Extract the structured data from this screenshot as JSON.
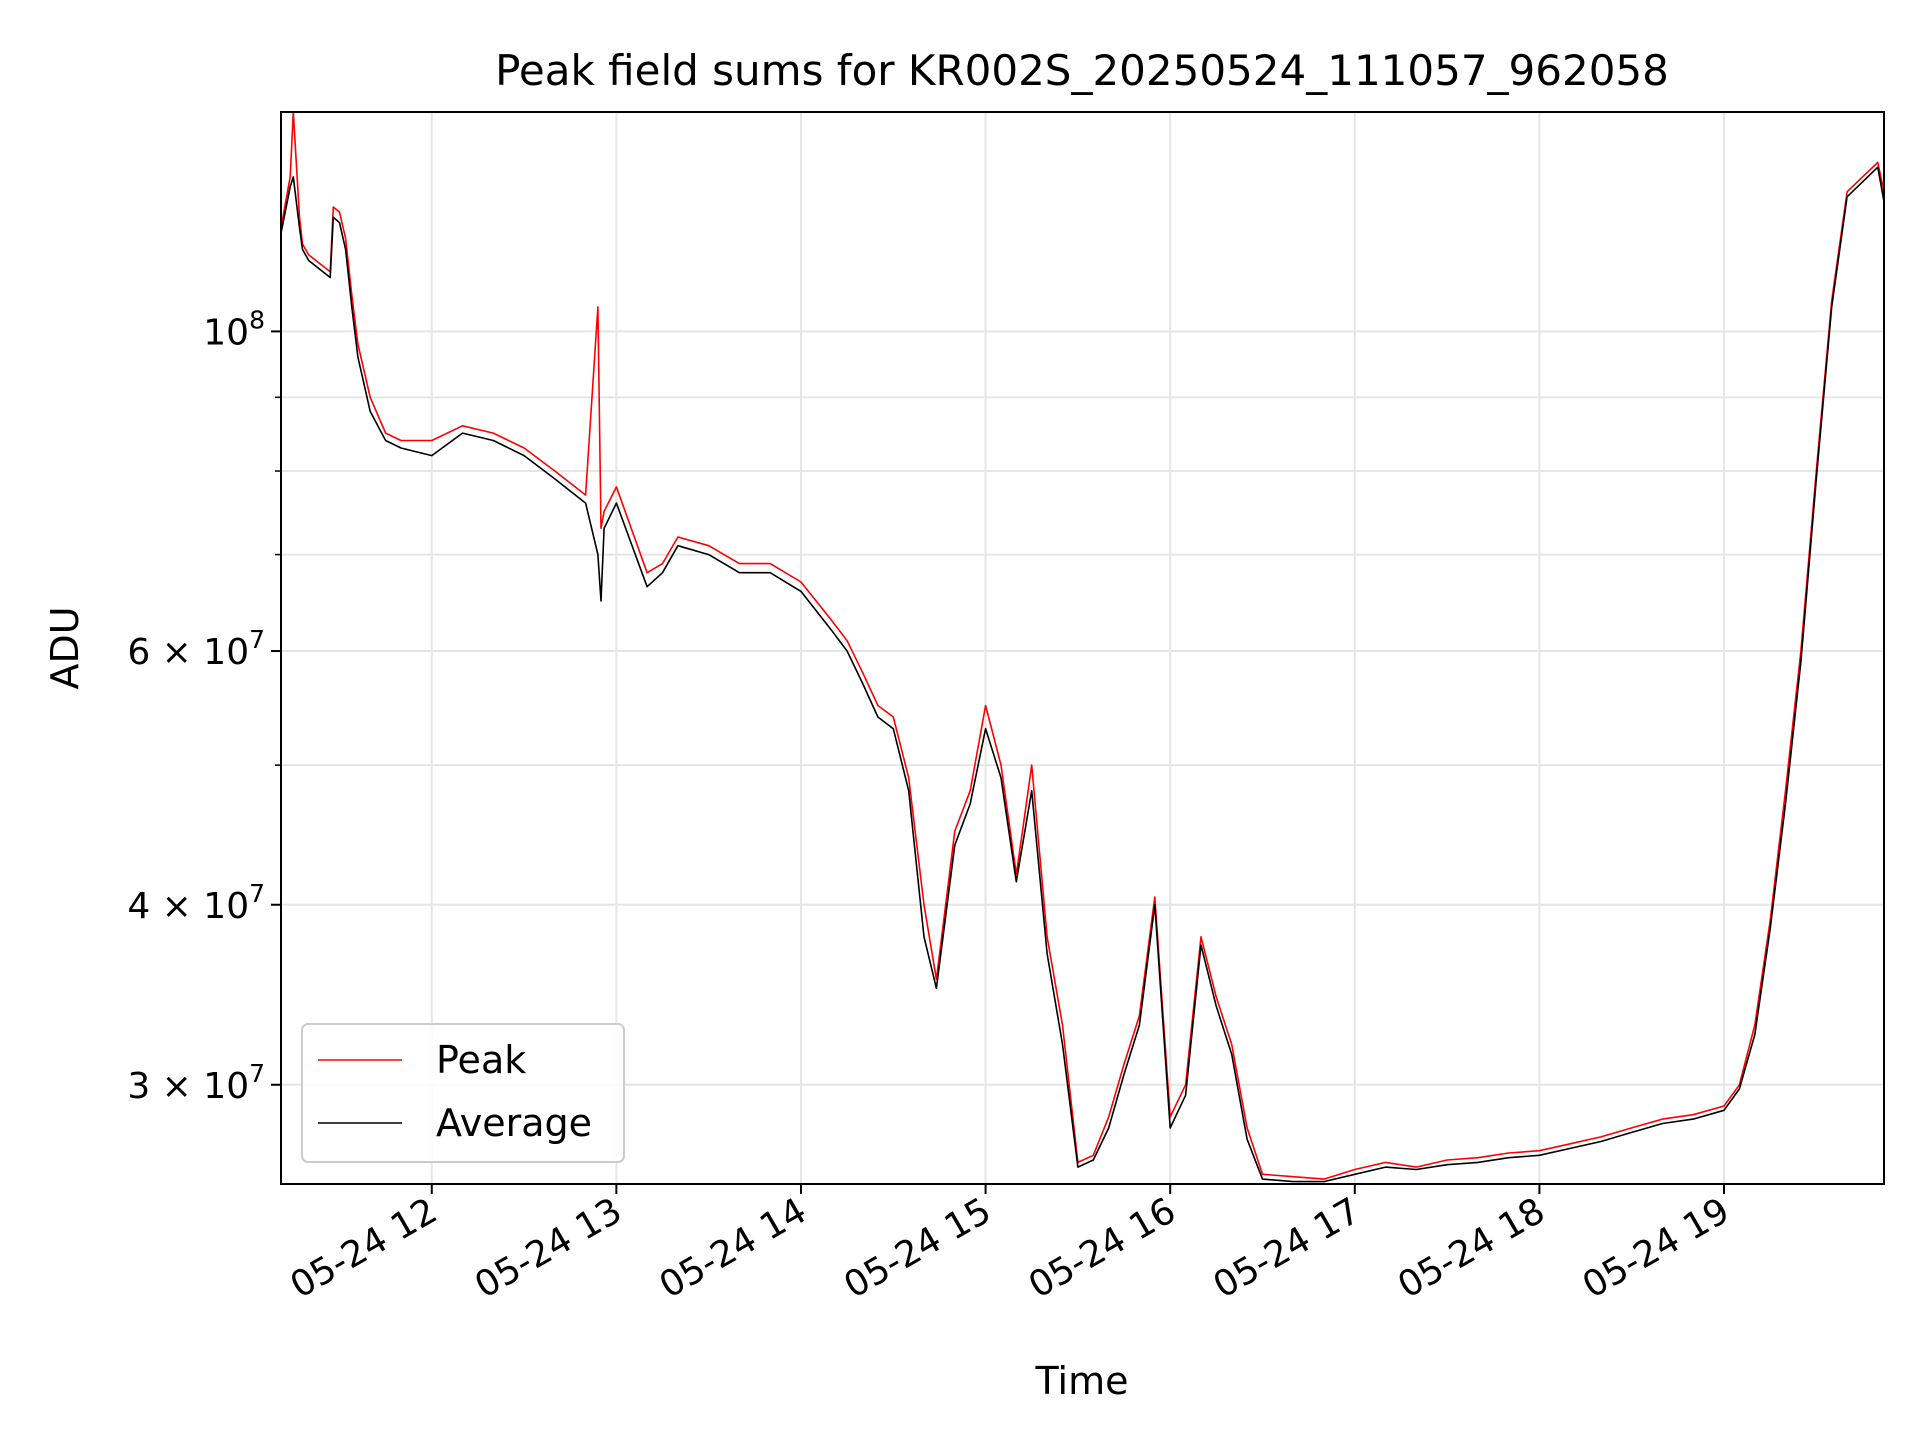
{
  "chart_data": {
    "type": "line",
    "title": "Peak field sums for KR002S_20250524_111057_962058",
    "xlabel": "Time",
    "ylabel": "ADU",
    "y_scale": "log",
    "ylim": [
      25600000,
      142000000
    ],
    "xlim": [
      "2025-05-24 11:11",
      "2025-05-24 19:52"
    ],
    "grid": true,
    "legend_position": "lower-left",
    "x_tick_labels": [
      "05-24 12",
      "05-24 13",
      "05-24 14",
      "05-24 15",
      "05-24 16",
      "05-24 17",
      "05-24 18",
      "05-24 19"
    ],
    "y_tick_labels": [
      {
        "value": 100000000,
        "base": "10",
        "exp": "8"
      },
      {
        "value": 60000000,
        "base": "6 × 10",
        "exp": "7"
      },
      {
        "value": 40000000,
        "base": "4 × 10",
        "exp": "7"
      },
      {
        "value": 30000000,
        "base": "3 × 10",
        "exp": "7"
      }
    ],
    "x": [
      "11:11",
      "11:14",
      "11:15",
      "11:17",
      "11:18",
      "11:20",
      "11:27",
      "11:28",
      "11:30",
      "11:32",
      "11:34",
      "11:36",
      "11:40",
      "11:45",
      "11:50",
      "12:00",
      "12:10",
      "12:20",
      "12:30",
      "12:40",
      "12:50",
      "12:54",
      "12:55",
      "12:56",
      "13:00",
      "13:10",
      "13:15",
      "13:20",
      "13:30",
      "13:40",
      "13:50",
      "14:00",
      "14:10",
      "14:15",
      "14:20",
      "14:25",
      "14:30",
      "14:35",
      "14:40",
      "14:44",
      "14:50",
      "14:55",
      "15:00",
      "15:05",
      "15:10",
      "15:12",
      "15:15",
      "15:20",
      "15:25",
      "15:30",
      "15:35",
      "15:40",
      "15:45",
      "15:50",
      "15:55",
      "16:00",
      "16:05",
      "16:10",
      "16:15",
      "16:20",
      "16:25",
      "16:30",
      "16:40",
      "16:50",
      "17:00",
      "17:10",
      "17:20",
      "17:30",
      "17:40",
      "17:50",
      "18:00",
      "18:10",
      "18:20",
      "18:30",
      "18:40",
      "18:50",
      "19:00",
      "19:05",
      "19:10",
      "19:15",
      "19:20",
      "19:25",
      "19:30",
      "19:35",
      "19:40",
      "19:45",
      "19:50",
      "19:52"
    ],
    "series": [
      {
        "name": "Peak",
        "color": "#ff0000",
        "values": [
          118000000,
          128000000,
          142000000,
          120000000,
          115000000,
          113000000,
          110000000,
          122000000,
          121000000,
          116000000,
          106000000,
          98000000,
          90000000,
          85000000,
          84000000,
          84000000,
          86000000,
          85000000,
          83000000,
          80000000,
          77000000,
          104000000,
          73000000,
          75000000,
          78000000,
          68000000,
          69000000,
          72000000,
          71000000,
          69000000,
          69000000,
          67000000,
          63000000,
          61000000,
          58000000,
          55000000,
          54000000,
          49000000,
          40000000,
          35500000,
          45000000,
          48000000,
          55000000,
          50000000,
          42000000,
          45000000,
          50000000,
          38000000,
          33000000,
          26500000,
          26800000,
          28500000,
          31000000,
          33500000,
          40500000,
          28500000,
          30000000,
          38000000,
          34500000,
          32000000,
          28000000,
          26000000,
          25900000,
          25800000,
          26200000,
          26500000,
          26300000,
          26600000,
          26700000,
          26900000,
          27000000,
          27300000,
          27600000,
          28000000,
          28400000,
          28600000,
          29000000,
          30000000,
          33000000,
          39000000,
          48000000,
          60000000,
          80000000,
          105000000,
          125000000,
          128000000,
          131000000,
          125000000
        ]
      },
      {
        "name": "Average",
        "color": "#000000",
        "values": [
          117000000,
          126000000,
          128000000,
          118000000,
          114000000,
          112000000,
          109000000,
          120000000,
          119000000,
          114000000,
          104000000,
          96000000,
          88000000,
          84000000,
          83000000,
          82000000,
          85000000,
          84000000,
          82000000,
          79000000,
          76000000,
          70000000,
          65000000,
          73000000,
          76000000,
          66500000,
          68000000,
          71000000,
          70000000,
          68000000,
          68000000,
          66000000,
          62000000,
          60000000,
          57000000,
          54000000,
          53000000,
          48000000,
          38000000,
          35000000,
          44000000,
          47000000,
          53000000,
          49000000,
          41500000,
          44000000,
          48000000,
          37000000,
          32000000,
          26300000,
          26600000,
          28000000,
          30500000,
          33000000,
          40000000,
          28000000,
          29500000,
          37500000,
          34000000,
          31500000,
          27500000,
          25800000,
          25700000,
          25700000,
          26000000,
          26300000,
          26200000,
          26400000,
          26500000,
          26700000,
          26800000,
          27100000,
          27400000,
          27800000,
          28200000,
          28400000,
          28800000,
          29800000,
          32500000,
          38500000,
          47000000,
          59000000,
          79000000,
          104000000,
          124000000,
          127000000,
          130000000,
          123000000
        ]
      }
    ]
  }
}
